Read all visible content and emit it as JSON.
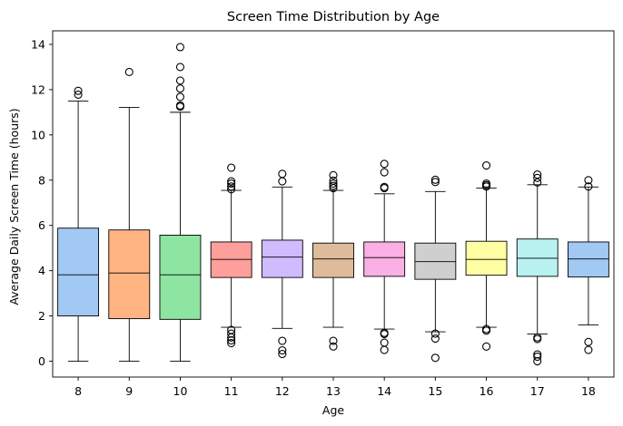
{
  "chart_data": {
    "type": "box",
    "title": "Screen Time Distribution by Age",
    "xlabel": "Age",
    "ylabel": "Average Daily Screen Time (hours)",
    "ylim": [
      -0.7,
      14.6
    ],
    "yticks": [
      "0",
      "2",
      "4",
      "6",
      "8",
      "10",
      "12",
      "14"
    ],
    "grid": false,
    "categories": [
      "8",
      "9",
      "10",
      "11",
      "12",
      "13",
      "14",
      "15",
      "16",
      "17",
      "18"
    ],
    "boxes": [
      {
        "category": "8",
        "color": "#a1c9f4",
        "whisker_low": 0.0,
        "q1": 2.0,
        "median": 3.82,
        "q3": 5.88,
        "whisker_high": 11.5,
        "outliers": [
          11.78,
          11.95
        ]
      },
      {
        "category": "9",
        "color": "#ffb482",
        "whisker_low": 0.0,
        "q1": 1.88,
        "median": 3.9,
        "q3": 5.8,
        "whisker_high": 11.22,
        "outliers": [
          12.78
        ]
      },
      {
        "category": "10",
        "color": "#8de5a1",
        "whisker_low": 0.0,
        "q1": 1.85,
        "median": 3.82,
        "q3": 5.57,
        "whisker_high": 11.0,
        "outliers": [
          11.25,
          11.3,
          11.68,
          12.05,
          12.4,
          13.0,
          13.88
        ]
      },
      {
        "category": "11",
        "color": "#ff9f9b",
        "whisker_low": 1.5,
        "q1": 3.7,
        "median": 4.5,
        "q3": 5.27,
        "whisker_high": 7.55,
        "outliers": [
          7.6,
          7.72,
          7.85,
          7.95,
          8.55,
          1.38,
          1.22,
          1.05,
          0.92,
          0.8
        ]
      },
      {
        "category": "12",
        "color": "#d0bbff",
        "whisker_low": 1.45,
        "q1": 3.7,
        "median": 4.6,
        "q3": 5.35,
        "whisker_high": 7.7,
        "outliers": [
          7.95,
          8.28,
          0.9,
          0.48,
          0.32
        ]
      },
      {
        "category": "13",
        "color": "#debb9b",
        "whisker_low": 1.5,
        "q1": 3.7,
        "median": 4.52,
        "q3": 5.22,
        "whisker_high": 7.55,
        "outliers": [
          7.65,
          7.75,
          7.85,
          7.98,
          8.22,
          0.9,
          0.65
        ]
      },
      {
        "category": "14",
        "color": "#fab0e4",
        "whisker_low": 1.42,
        "q1": 3.75,
        "median": 4.58,
        "q3": 5.27,
        "whisker_high": 7.4,
        "outliers": [
          7.65,
          7.7,
          8.35,
          8.72,
          1.25,
          1.2,
          0.82,
          0.5
        ]
      },
      {
        "category": "15",
        "color": "#cfcfcf",
        "whisker_low": 1.3,
        "q1": 3.62,
        "median": 4.4,
        "q3": 5.22,
        "whisker_high": 7.5,
        "outliers": [
          7.92,
          8.02,
          1.22,
          1.0,
          0.15
        ]
      },
      {
        "category": "16",
        "color": "#fffea3",
        "whisker_low": 1.5,
        "q1": 3.8,
        "median": 4.5,
        "q3": 5.3,
        "whisker_high": 7.65,
        "outliers": [
          7.72,
          7.78,
          7.85,
          8.65,
          1.42,
          1.35,
          0.65
        ]
      },
      {
        "category": "17",
        "color": "#b9f2f0",
        "whisker_low": 1.2,
        "q1": 3.75,
        "median": 4.55,
        "q3": 5.4,
        "whisker_high": 7.8,
        "outliers": [
          7.9,
          8.1,
          8.25,
          1.05,
          0.98,
          0.3,
          0.2,
          0.0
        ]
      },
      {
        "category": "18",
        "color": "#a1c9f4",
        "whisker_low": 1.6,
        "q1": 3.72,
        "median": 4.52,
        "q3": 5.27,
        "whisker_high": 7.7,
        "outliers": [
          7.72,
          8.0,
          0.85,
          0.5
        ]
      }
    ]
  }
}
